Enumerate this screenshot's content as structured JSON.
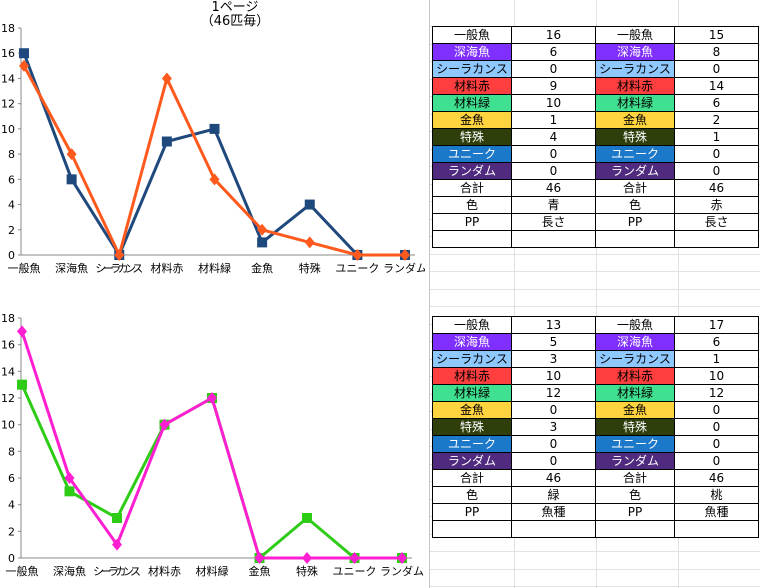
{
  "chart_data": [
    {
      "type": "line",
      "title": "1ページ",
      "subtitle": "（46匹毎）",
      "categories": [
        "一般魚",
        "深海魚",
        "シーラカンス",
        "材料赤",
        "材料緑",
        "金魚",
        "特殊",
        "ユニーク",
        "ランダム"
      ],
      "ylim": [
        0,
        18
      ],
      "yticks": [
        0,
        2,
        4,
        6,
        8,
        10,
        12,
        14,
        16,
        18
      ],
      "grid": false,
      "series": [
        {
          "values": [
            16,
            6,
            0,
            9,
            10,
            1,
            4,
            0,
            0
          ],
          "color": "#1f497d",
          "marker": "square"
        },
        {
          "values": [
            15,
            8,
            0,
            14,
            6,
            2,
            1,
            0,
            0
          ],
          "color": "#ff5a1e",
          "marker": "diamond"
        }
      ]
    },
    {
      "type": "line",
      "title": "",
      "categories": [
        "一般魚",
        "深海魚",
        "シーラカンス",
        "材料赤",
        "材料緑",
        "金魚",
        "特殊",
        "ユニーク",
        "ランダム"
      ],
      "ylim": [
        0,
        18
      ],
      "yticks": [
        0,
        2,
        4,
        6,
        8,
        10,
        12,
        14,
        16,
        18
      ],
      "grid": false,
      "series": [
        {
          "values": [
            13,
            5,
            3,
            10,
            12,
            0,
            3,
            0,
            0
          ],
          "color": "#2ecc17",
          "marker": "square"
        },
        {
          "values": [
            17,
            6,
            1,
            10,
            12,
            0,
            0,
            0,
            0
          ],
          "color": "#ff1fd2",
          "marker": "diamond"
        }
      ]
    }
  ],
  "tables": [
    {
      "rows": [
        {
          "l1": "一般魚",
          "v1": "16",
          "l2": "一般魚",
          "v2": "15",
          "bg": "#ffffff",
          "fg": "#000000"
        },
        {
          "l1": "深海魚",
          "v1": "6",
          "l2": "深海魚",
          "v2": "8",
          "bg": "#7f2fff",
          "fg": "#ffffff"
        },
        {
          "l1": "シーラカンス",
          "v1": "0",
          "l2": "シーラカンス",
          "v2": "0",
          "bg": "#8ec8ff",
          "fg": "#000000"
        },
        {
          "l1": "材料赤",
          "v1": "9",
          "l2": "材料赤",
          "v2": "14",
          "bg": "#ff3f3f",
          "fg": "#000000"
        },
        {
          "l1": "材料緑",
          "v1": "10",
          "l2": "材料緑",
          "v2": "6",
          "bg": "#3fe08f",
          "fg": "#000000"
        },
        {
          "l1": "金魚",
          "v1": "1",
          "l2": "金魚",
          "v2": "2",
          "bg": "#ffd43f",
          "fg": "#000000"
        },
        {
          "l1": "特殊",
          "v1": "4",
          "l2": "特殊",
          "v2": "1",
          "bg": "#2e3f0c",
          "fg": "#ffffff"
        },
        {
          "l1": "ユニーク",
          "v1": "0",
          "l2": "ユニーク",
          "v2": "0",
          "bg": "#1c78c8",
          "fg": "#ffffff"
        },
        {
          "l1": "ランダム",
          "v1": "0",
          "l2": "ランダム",
          "v2": "0",
          "bg": "#4f2a7f",
          "fg": "#ffffff"
        },
        {
          "l1": "合計",
          "v1": "46",
          "l2": "合計",
          "v2": "46",
          "bg": "#ffffff",
          "fg": "#000000"
        },
        {
          "l1": "色",
          "v1": "青",
          "l2": "色",
          "v2": "赤",
          "bg": "#ffffff",
          "fg": "#000000"
        },
        {
          "l1": "PP",
          "v1": "長さ",
          "l2": "PP",
          "v2": "長さ",
          "bg": "#ffffff",
          "fg": "#000000"
        }
      ]
    },
    {
      "rows": [
        {
          "l1": "一般魚",
          "v1": "13",
          "l2": "一般魚",
          "v2": "17",
          "bg": "#ffffff",
          "fg": "#000000"
        },
        {
          "l1": "深海魚",
          "v1": "5",
          "l2": "深海魚",
          "v2": "6",
          "bg": "#7f2fff",
          "fg": "#ffffff"
        },
        {
          "l1": "シーラカンス",
          "v1": "3",
          "l2": "シーラカンス",
          "v2": "1",
          "bg": "#8ec8ff",
          "fg": "#000000"
        },
        {
          "l1": "材料赤",
          "v1": "10",
          "l2": "材料赤",
          "v2": "10",
          "bg": "#ff3f3f",
          "fg": "#000000"
        },
        {
          "l1": "材料緑",
          "v1": "12",
          "l2": "材料緑",
          "v2": "12",
          "bg": "#3fe08f",
          "fg": "#000000"
        },
        {
          "l1": "金魚",
          "v1": "0",
          "l2": "金魚",
          "v2": "0",
          "bg": "#ffd43f",
          "fg": "#000000"
        },
        {
          "l1": "特殊",
          "v1": "3",
          "l2": "特殊",
          "v2": "0",
          "bg": "#2e3f0c",
          "fg": "#ffffff"
        },
        {
          "l1": "ユニーク",
          "v1": "0",
          "l2": "ユニーク",
          "v2": "0",
          "bg": "#1c78c8",
          "fg": "#ffffff"
        },
        {
          "l1": "ランダム",
          "v1": "0",
          "l2": "ランダム",
          "v2": "0",
          "bg": "#4f2a7f",
          "fg": "#ffffff"
        },
        {
          "l1": "合計",
          "v1": "46",
          "l2": "合計",
          "v2": "46",
          "bg": "#ffffff",
          "fg": "#000000"
        },
        {
          "l1": "色",
          "v1": "緑",
          "l2": "色",
          "v2": "桃",
          "bg": "#ffffff",
          "fg": "#000000"
        },
        {
          "l1": "PP",
          "v1": "魚種",
          "l2": "PP",
          "v2": "魚種",
          "bg": "#ffffff",
          "fg": "#000000"
        }
      ]
    }
  ]
}
